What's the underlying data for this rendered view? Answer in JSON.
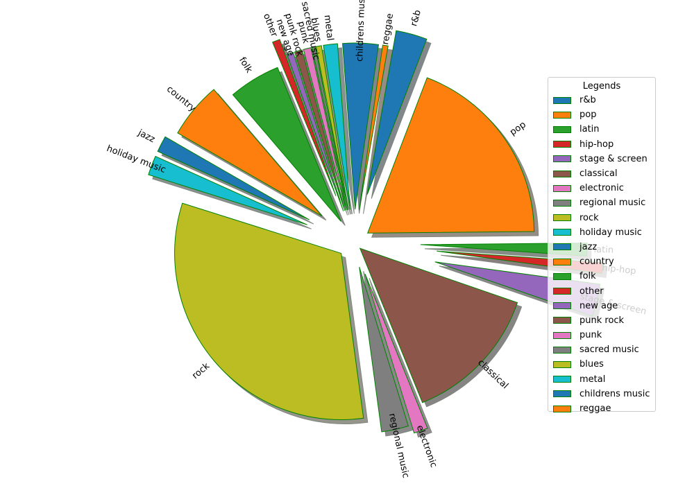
{
  "chart_data": {
    "type": "pie",
    "title": "",
    "slices": [
      {
        "label": "r&b",
        "value": 2.9,
        "color": "#1f77b4",
        "explode": 0.3
      },
      {
        "label": "pop",
        "value": 18.2,
        "color": "#ff7f0e",
        "explode": 0.1
      },
      {
        "label": "latin",
        "value": 1.2,
        "color": "#2ca02c",
        "explode": 0.4
      },
      {
        "label": "hip-hop",
        "value": 1.0,
        "color": "#d62728",
        "explode": 0.5
      },
      {
        "label": "stage & screen",
        "value": 3.0,
        "color": "#9467bd",
        "explode": 0.5
      },
      {
        "label": "classical",
        "value": 13.0,
        "color": "#8c564b",
        "explode": 0.05
      },
      {
        "label": "electronic",
        "value": 1.3,
        "color": "#e377c2",
        "explode": 0.2
      },
      {
        "label": "regional music",
        "value": 2.5,
        "color": "#7f7f7f",
        "explode": 0.15
      },
      {
        "label": "rock",
        "value": 30.6,
        "color": "#bcbd22",
        "explode": 0.1
      },
      {
        "label": "holiday music",
        "value": 1.8,
        "color": "#17becf",
        "explode": 0.3
      },
      {
        "label": "jazz",
        "value": 1.5,
        "color": "#1f77b4",
        "explode": 0.3
      },
      {
        "label": "country",
        "value": 5.2,
        "color": "#ff7f0e",
        "explode": 0.25
      },
      {
        "label": "folk",
        "value": 4.8,
        "color": "#2ca02c",
        "explode": 0.15
      },
      {
        "label": "other",
        "value": 0.7,
        "color": "#d62728",
        "explode": 0.3
      },
      {
        "label": "new age",
        "value": 0.6,
        "color": "#9467bd",
        "explode": 0.2
      },
      {
        "label": "punk rock",
        "value": 0.7,
        "color": "#8c564b",
        "explode": 0.2
      },
      {
        "label": "punk",
        "value": 0.7,
        "color": "#e377c2",
        "explode": 0.2
      },
      {
        "label": "sacred music",
        "value": 0.3,
        "color": "#7f7f7f",
        "explode": 0.2
      },
      {
        "label": "blues",
        "value": 0.5,
        "color": "#bcbd22",
        "explode": 0.2
      },
      {
        "label": "metal",
        "value": 1.3,
        "color": "#17becf",
        "explode": 0.2
      },
      {
        "label": "childrens music",
        "value": 3.3,
        "color": "#1f77b4",
        "explode": 0.2
      },
      {
        "label": "reggae",
        "value": 0.5,
        "color": "#ff7f0e",
        "explode": 0.2
      }
    ],
    "start_angle_deg": 80,
    "counterclockwise": false,
    "shadow": true,
    "edge_color": "#008000",
    "legend": {
      "title": "Legends",
      "placement": "right"
    }
  }
}
